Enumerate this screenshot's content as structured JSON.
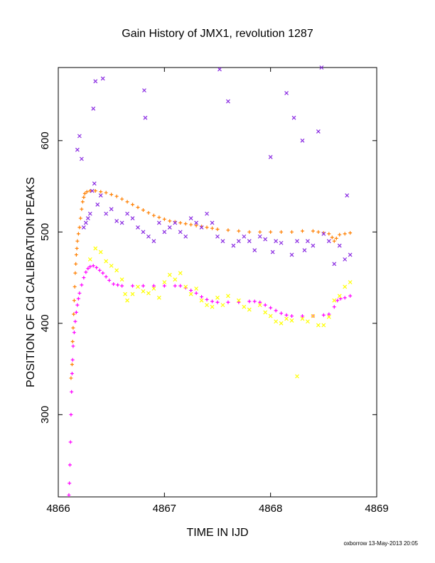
{
  "chart_data": {
    "type": "scatter",
    "title": "Gain History of JMX1, revolution 1287",
    "xlabel": "TIME IN IJD",
    "ylabel": "POSITION OF Cd CALIBRATION PEAKS",
    "xlim": [
      4866,
      4869
    ],
    "ylim": [
      210,
      680
    ],
    "x_ticks": [
      4866,
      4867,
      4868,
      4869
    ],
    "y_ticks": [
      300,
      400,
      500,
      600
    ],
    "grid": false,
    "legend": "none",
    "series": [
      {
        "color": "#ff7f00",
        "marker": "plus",
        "points": [
          [
            4866.12,
            340
          ],
          [
            4866.13,
            355
          ],
          [
            4866.135,
            380
          ],
          [
            4866.14,
            395
          ],
          [
            4866.145,
            410
          ],
          [
            4866.15,
            425
          ],
          [
            4866.155,
            440
          ],
          [
            4866.16,
            455
          ],
          [
            4866.165,
            465
          ],
          [
            4866.17,
            475
          ],
          [
            4866.175,
            482
          ],
          [
            4866.18,
            490
          ],
          [
            4866.19,
            498
          ],
          [
            4866.2,
            505
          ],
          [
            4866.21,
            515
          ],
          [
            4866.22,
            525
          ],
          [
            4866.23,
            533
          ],
          [
            4866.24,
            538
          ],
          [
            4866.25,
            542
          ],
          [
            4866.27,
            544
          ],
          [
            4866.3,
            545
          ],
          [
            4866.35,
            545
          ],
          [
            4866.4,
            544
          ],
          [
            4866.45,
            543
          ],
          [
            4866.5,
            541
          ],
          [
            4866.55,
            539
          ],
          [
            4866.6,
            536
          ],
          [
            4866.65,
            533
          ],
          [
            4866.7,
            530
          ],
          [
            4866.75,
            527
          ],
          [
            4866.8,
            524
          ],
          [
            4866.85,
            521
          ],
          [
            4866.9,
            518
          ],
          [
            4866.95,
            516
          ],
          [
            4867.0,
            514
          ],
          [
            4867.05,
            512
          ],
          [
            4867.1,
            511
          ],
          [
            4867.15,
            510
          ],
          [
            4867.2,
            509
          ],
          [
            4867.25,
            508
          ],
          [
            4867.3,
            507
          ],
          [
            4867.35,
            506
          ],
          [
            4867.4,
            505
          ],
          [
            4867.45,
            504
          ],
          [
            4867.5,
            503
          ],
          [
            4867.6,
            502
          ],
          [
            4867.7,
            501
          ],
          [
            4867.8,
            500
          ],
          [
            4867.9,
            500
          ],
          [
            4868.0,
            500
          ],
          [
            4868.1,
            500
          ],
          [
            4868.2,
            500
          ],
          [
            4868.3,
            501
          ],
          [
            4868.4,
            501
          ],
          [
            4868.45,
            500
          ],
          [
            4868.5,
            499
          ],
          [
            4868.55,
            498
          ],
          [
            4868.58,
            494
          ],
          [
            4868.6,
            490
          ],
          [
            4868.62,
            493
          ],
          [
            4868.65,
            497
          ],
          [
            4868.7,
            498
          ],
          [
            4868.75,
            499
          ]
        ]
      },
      {
        "color": "#ff00ff",
        "marker": "plus",
        "points": [
          [
            4866.1,
            212
          ],
          [
            4866.105,
            225
          ],
          [
            4866.11,
            245
          ],
          [
            4866.115,
            270
          ],
          [
            4866.12,
            300
          ],
          [
            4866.125,
            325
          ],
          [
            4866.13,
            345
          ],
          [
            4866.135,
            360
          ],
          [
            4866.14,
            375
          ],
          [
            4866.15,
            390
          ],
          [
            4866.16,
            402
          ],
          [
            4866.17,
            412
          ],
          [
            4866.18,
            420
          ],
          [
            4866.19,
            427
          ],
          [
            4866.2,
            433
          ],
          [
            4866.22,
            442
          ],
          [
            4866.24,
            450
          ],
          [
            4866.26,
            456
          ],
          [
            4866.28,
            460
          ],
          [
            4866.3,
            462
          ],
          [
            4866.33,
            463
          ],
          [
            4866.36,
            461
          ],
          [
            4866.39,
            458
          ],
          [
            4866.42,
            455
          ],
          [
            4866.45,
            451
          ],
          [
            4866.48,
            447
          ],
          [
            4866.52,
            443
          ],
          [
            4866.56,
            442
          ],
          [
            4866.6,
            441
          ],
          [
            4866.7,
            441
          ],
          [
            4866.8,
            441
          ],
          [
            4866.9,
            441
          ],
          [
            4867.0,
            441
          ],
          [
            4867.1,
            441
          ],
          [
            4867.15,
            441
          ],
          [
            4867.2,
            439
          ],
          [
            4867.25,
            436
          ],
          [
            4867.3,
            433
          ],
          [
            4867.35,
            429
          ],
          [
            4867.4,
            426
          ],
          [
            4867.45,
            424
          ],
          [
            4867.5,
            423
          ],
          [
            4867.6,
            423
          ],
          [
            4867.7,
            423
          ],
          [
            4867.8,
            424
          ],
          [
            4867.85,
            424
          ],
          [
            4867.9,
            423
          ],
          [
            4867.95,
            420
          ],
          [
            4868.0,
            417
          ],
          [
            4868.05,
            414
          ],
          [
            4868.1,
            411
          ],
          [
            4868.15,
            409
          ],
          [
            4868.2,
            408
          ],
          [
            4868.3,
            408
          ],
          [
            4868.4,
            408
          ],
          [
            4868.5,
            409
          ],
          [
            4868.55,
            410
          ],
          [
            4868.6,
            418
          ],
          [
            4868.63,
            425
          ],
          [
            4868.66,
            427
          ],
          [
            4868.7,
            428
          ],
          [
            4868.75,
            430
          ]
        ]
      },
      {
        "color": "#ffff00",
        "marker": "x",
        "points": [
          [
            4866.3,
            470
          ],
          [
            4866.35,
            482
          ],
          [
            4866.4,
            478
          ],
          [
            4866.45,
            468
          ],
          [
            4866.5,
            463
          ],
          [
            4866.55,
            458
          ],
          [
            4866.6,
            448
          ],
          [
            4866.63,
            432
          ],
          [
            4866.65,
            425
          ],
          [
            4866.7,
            432
          ],
          [
            4866.75,
            440
          ],
          [
            4866.8,
            435
          ],
          [
            4866.85,
            433
          ],
          [
            4866.9,
            438
          ],
          [
            4866.95,
            428
          ],
          [
            4867.0,
            445
          ],
          [
            4867.05,
            453
          ],
          [
            4867.1,
            448
          ],
          [
            4867.15,
            455
          ],
          [
            4867.2,
            440
          ],
          [
            4867.25,
            432
          ],
          [
            4867.3,
            438
          ],
          [
            4867.35,
            425
          ],
          [
            4867.4,
            420
          ],
          [
            4867.45,
            418
          ],
          [
            4867.5,
            428
          ],
          [
            4867.55,
            420
          ],
          [
            4867.6,
            430
          ],
          [
            4867.7,
            425
          ],
          [
            4867.75,
            418
          ],
          [
            4867.8,
            415
          ],
          [
            4867.9,
            420
          ],
          [
            4867.95,
            412
          ],
          [
            4868.0,
            408
          ],
          [
            4868.05,
            402
          ],
          [
            4868.1,
            400
          ],
          [
            4868.15,
            405
          ],
          [
            4868.2,
            403
          ],
          [
            4868.25,
            342
          ],
          [
            4868.3,
            405
          ],
          [
            4868.35,
            402
          ],
          [
            4868.4,
            408
          ],
          [
            4868.45,
            398
          ],
          [
            4868.5,
            398
          ],
          [
            4868.55,
            407
          ],
          [
            4868.6,
            425
          ],
          [
            4868.65,
            430
          ],
          [
            4868.7,
            440
          ],
          [
            4868.75,
            445
          ]
        ]
      },
      {
        "color": "#8a2be2",
        "marker": "x",
        "points": [
          [
            4866.18,
            590
          ],
          [
            4866.2,
            605
          ],
          [
            4866.22,
            580
          ],
          [
            4866.24,
            505
          ],
          [
            4866.26,
            510
          ],
          [
            4866.28,
            515
          ],
          [
            4866.3,
            520
          ],
          [
            4866.32,
            545
          ],
          [
            4866.33,
            635
          ],
          [
            4866.34,
            553
          ],
          [
            4866.35,
            665
          ],
          [
            4866.37,
            530
          ],
          [
            4866.4,
            540
          ],
          [
            4866.42,
            668
          ],
          [
            4866.45,
            520
          ],
          [
            4866.5,
            525
          ],
          [
            4866.55,
            512
          ],
          [
            4866.6,
            510
          ],
          [
            4866.65,
            520
          ],
          [
            4866.7,
            515
          ],
          [
            4866.75,
            505
          ],
          [
            4866.8,
            500
          ],
          [
            4866.81,
            655
          ],
          [
            4866.82,
            625
          ],
          [
            4866.85,
            495
          ],
          [
            4866.9,
            490
          ],
          [
            4866.95,
            510
          ],
          [
            4867.0,
            500
          ],
          [
            4867.05,
            505
          ],
          [
            4867.1,
            510
          ],
          [
            4867.15,
            500
          ],
          [
            4867.2,
            495
          ],
          [
            4867.25,
            515
          ],
          [
            4867.3,
            510
          ],
          [
            4867.35,
            505
          ],
          [
            4867.4,
            520
          ],
          [
            4867.45,
            510
          ],
          [
            4867.5,
            495
          ],
          [
            4867.52,
            678
          ],
          [
            4867.55,
            490
          ],
          [
            4867.6,
            643
          ],
          [
            4867.65,
            485
          ],
          [
            4867.7,
            490
          ],
          [
            4867.75,
            495
          ],
          [
            4867.8,
            490
          ],
          [
            4867.85,
            480
          ],
          [
            4867.9,
            495
          ],
          [
            4867.95,
            492
          ],
          [
            4868.0,
            582
          ],
          [
            4868.02,
            478
          ],
          [
            4868.05,
            490
          ],
          [
            4868.1,
            488
          ],
          [
            4868.15,
            652
          ],
          [
            4868.2,
            475
          ],
          [
            4868.22,
            625
          ],
          [
            4868.25,
            490
          ],
          [
            4868.3,
            600
          ],
          [
            4868.32,
            480
          ],
          [
            4868.35,
            490
          ],
          [
            4868.4,
            485
          ],
          [
            4868.45,
            610
          ],
          [
            4868.48,
            680
          ],
          [
            4868.5,
            498
          ],
          [
            4868.55,
            490
          ],
          [
            4868.6,
            465
          ],
          [
            4868.65,
            485
          ],
          [
            4868.7,
            470
          ],
          [
            4868.72,
            540
          ],
          [
            4868.75,
            475
          ]
        ]
      }
    ]
  },
  "footer": "oxborrow 13-May-2013 20:05"
}
